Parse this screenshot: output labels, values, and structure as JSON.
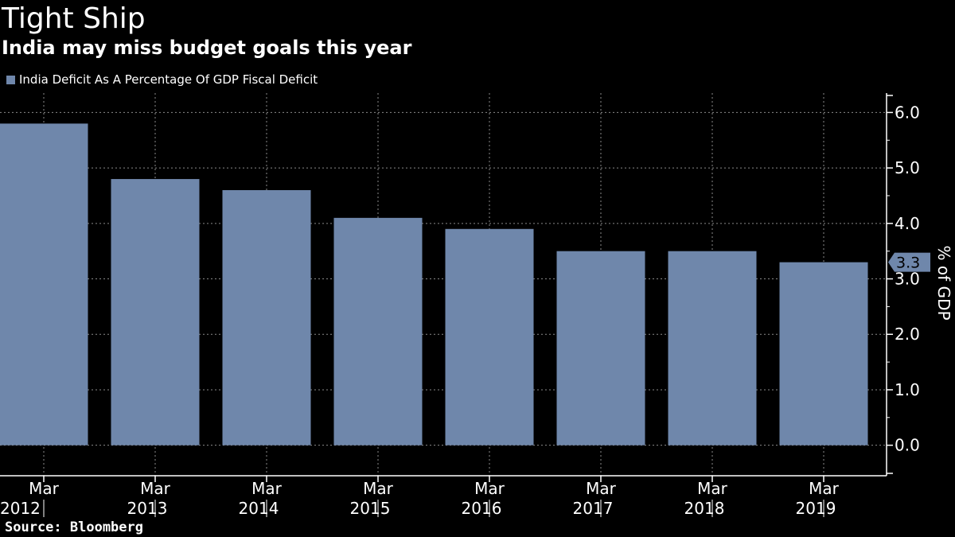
{
  "header": {
    "title": "Tight Ship",
    "subtitle": "India may miss budget goals this year"
  },
  "legend": {
    "label": "India Deficit As A Percentage Of GDP Fiscal Deficit",
    "color": "#6f87ab"
  },
  "footer": {
    "source": "Source: Bloomberg"
  },
  "chart_data": {
    "type": "bar",
    "title": "Tight Ship",
    "subtitle": "India may miss budget goals this year",
    "categories": [
      "Mar 2012",
      "Mar 2013",
      "Mar 2014",
      "Mar 2015",
      "Mar 2016",
      "Mar 2017",
      "Mar 2018",
      "Mar 2019"
    ],
    "series": [
      {
        "name": "India Deficit As A Percentage Of GDP Fiscal Deficit",
        "values": [
          5.8,
          4.8,
          4.6,
          4.1,
          3.9,
          3.5,
          3.5,
          3.3
        ],
        "color": "#6f87ab"
      }
    ],
    "ylabel": "% of GDP",
    "ylim": [
      -0.55,
      6.35
    ],
    "yticks": [
      0,
      1,
      2,
      3,
      4,
      5,
      6
    ],
    "ytick_labels": [
      "0.0",
      "1.0",
      "2.0",
      "3.0",
      "4.0",
      "5.0",
      "6.0"
    ],
    "x_month_labels": [
      "Mar",
      "Mar",
      "Mar",
      "Mar",
      "Mar",
      "Mar",
      "Mar",
      "Mar"
    ],
    "x_year_labels": [
      "2012",
      "2013",
      "2014",
      "2015",
      "2016",
      "2017",
      "2018",
      "2019"
    ],
    "last_value_label": "3.3",
    "y_axis_side": "right",
    "grid": true,
    "legend_position": "top-left"
  }
}
